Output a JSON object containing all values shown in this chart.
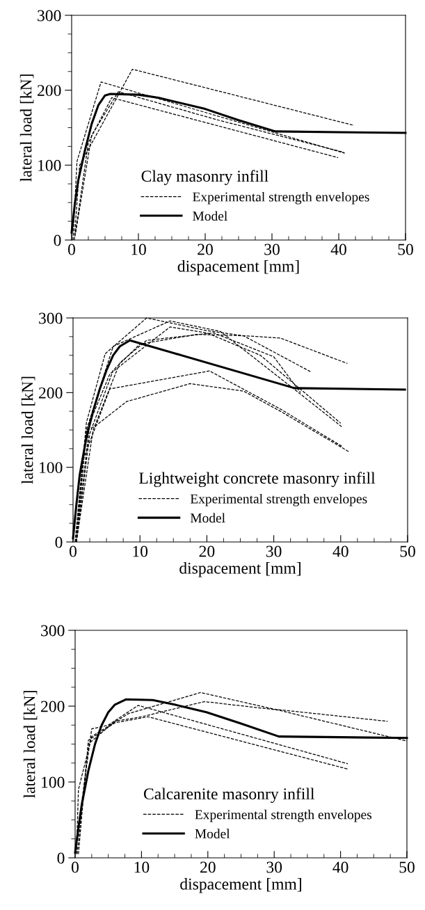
{
  "chart_data": [
    {
      "type": "line",
      "legend_title": "Clay masonry infill",
      "xlabel": "dispacement [mm]",
      "ylabel": "lateral load [kN]",
      "xlim": [
        0,
        50
      ],
      "ylim": [
        0,
        300
      ],
      "xticks": [
        0,
        10,
        20,
        30,
        40,
        50
      ],
      "yticks": [
        0,
        100,
        200,
        300
      ],
      "grid": false,
      "legend": "bottom",
      "marker": "none",
      "series": [
        {
          "name": "Experimental strength envelopes",
          "color": "#000000",
          "line_style": "dashed",
          "x": [
            0.4,
            1.2,
            9.1,
            42.3
          ],
          "values": [
            0,
            100,
            228,
            153
          ]
        },
        {
          "color": "#000000",
          "line_style": "dashed",
          "x": [
            0.2,
            0.8,
            4.4,
            40.9
          ],
          "values": [
            0,
            105,
            211,
            116
          ]
        },
        {
          "color": "#000000",
          "line_style": "dashed",
          "x": [
            0.5,
            2.5,
            6,
            39.9
          ],
          "values": [
            5,
            130,
            190,
            110
          ]
        },
        {
          "color": "#000000",
          "line_style": "dashed",
          "x": [
            0.6,
            3,
            7,
            22,
            40.8
          ],
          "values": [
            10,
            140,
            198,
            160,
            117
          ]
        },
        {
          "name": "Model",
          "color": "#000000",
          "line_style": "solid",
          "x": [
            0,
            0.5,
            1,
            2,
            3,
            4,
            5,
            5.8,
            10,
            13,
            20,
            25,
            30.5,
            40,
            50
          ],
          "values": [
            10,
            50,
            80,
            120,
            155,
            180,
            193,
            195,
            194,
            190,
            175,
            160,
            145,
            144,
            143
          ]
        }
      ]
    },
    {
      "type": "line",
      "legend_title": "Lightweight concrete masonry infill",
      "xlabel": "dispacement [mm]",
      "ylabel": "lateral load [kN]",
      "xlim": [
        0,
        50
      ],
      "ylim": [
        0,
        300
      ],
      "xticks": [
        0,
        10,
        20,
        30,
        40,
        50
      ],
      "yticks": [
        0,
        100,
        200,
        300
      ],
      "grid": false,
      "legend": "bottom",
      "marker": "none",
      "series": [
        {
          "name": "Experimental strength envelopes",
          "color": "#000000",
          "line_style": "dashed",
          "x": [
            0.3,
            2,
            4.8,
            11,
            20,
            25.5,
            35.5
          ],
          "values": [
            0,
            160,
            252,
            300,
            283,
            276,
            228
          ]
        },
        {
          "color": "#000000",
          "line_style": "dashed",
          "x": [
            0.5,
            2,
            6,
            14.5,
            22,
            33,
            40.2
          ],
          "values": [
            0,
            150,
            262,
            296,
            282,
            205,
            154
          ]
        },
        {
          "color": "#000000",
          "line_style": "dashed",
          "x": [
            0.5,
            2.5,
            5.5,
            14.5,
            20,
            28,
            40
          ],
          "values": [
            0,
            160,
            225,
            288,
            280,
            250,
            159
          ]
        },
        {
          "color": "#000000",
          "line_style": "dashed",
          "x": [
            0.5,
            2.5,
            6,
            10,
            18.5,
            26,
            31,
            41
          ],
          "values": [
            0,
            145,
            230,
            265,
            278,
            276,
            273,
            239
          ]
        },
        {
          "color": "#000000",
          "line_style": "dashed",
          "x": [
            0.5,
            3,
            7,
            11,
            21,
            30,
            34
          ],
          "values": [
            0,
            150,
            240,
            270,
            280,
            248,
            200
          ]
        },
        {
          "color": "#000000",
          "line_style": "dashed",
          "x": [
            0.5,
            1.5,
            5.5,
            20.4,
            31,
            40.2
          ],
          "values": [
            0,
            110,
            205,
            229,
            178,
            128
          ]
        },
        {
          "color": "#000000",
          "line_style": "dashed",
          "x": [
            0.4,
            2,
            3.3,
            8,
            17.5,
            25.5,
            31,
            41.2
          ],
          "values": [
            0,
            150,
            155,
            188,
            212,
            202,
            175,
            121
          ]
        },
        {
          "name": "Model",
          "color": "#000000",
          "line_style": "solid",
          "x": [
            0,
            0.5,
            1,
            2,
            3,
            4,
            5,
            6,
            7,
            8.5,
            33.1,
            49.6
          ],
          "values": [
            5,
            50,
            90,
            140,
            175,
            205,
            230,
            250,
            262,
            270,
            206,
            204
          ]
        }
      ]
    },
    {
      "type": "line",
      "legend_title": "Calcarenite masonry infill",
      "xlabel": "dispacement [mm]",
      "ylabel": "lateral load [kN]",
      "xlim": [
        0,
        50
      ],
      "ylim": [
        0,
        300
      ],
      "xticks": [
        0,
        10,
        20,
        30,
        40,
        50
      ],
      "yticks": [
        0,
        100,
        200,
        300
      ],
      "grid": false,
      "legend": "bottom",
      "marker": "none",
      "series": [
        {
          "name": "Experimental strength envelopes",
          "color": "#000000",
          "line_style": "dashed",
          "x": [
            0.2,
            0.5,
            2.5,
            8,
            18.9,
            30,
            47.1
          ],
          "values": [
            5,
            90,
            160,
            190,
            218,
            196,
            180
          ]
        },
        {
          "color": "#000000",
          "line_style": "dashed",
          "x": [
            0.3,
            2,
            6,
            10,
            19.5,
            30.5,
            50
          ],
          "values": [
            5,
            150,
            180,
            186,
            206,
            195,
            154
          ]
        },
        {
          "color": "#000000",
          "line_style": "dashed",
          "x": [
            0,
            2.5,
            5,
            9.5,
            41.1
          ],
          "values": [
            10,
            170,
            175,
            201,
            124
          ]
        },
        {
          "color": "#000000",
          "line_style": "dashed",
          "x": [
            0.5,
            2,
            6,
            11,
            41.1
          ],
          "values": [
            5,
            155,
            178,
            186,
            117
          ]
        },
        {
          "name": "Model",
          "color": "#000000",
          "line_style": "solid",
          "x": [
            0,
            0.5,
            1,
            2,
            3,
            4,
            5,
            6,
            7.7,
            11.7,
            15,
            19.8,
            25,
            30.7,
            50
          ],
          "values": [
            7,
            40,
            70,
            115,
            150,
            175,
            192,
            202,
            209,
            208,
            202,
            192,
            177,
            160,
            158
          ]
        }
      ]
    }
  ]
}
